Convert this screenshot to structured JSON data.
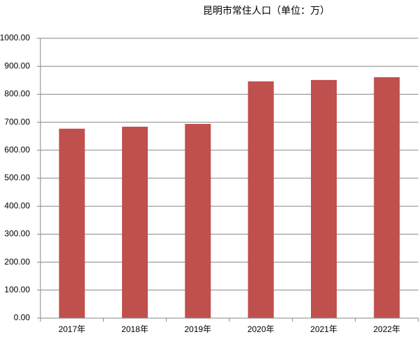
{
  "chart_data": {
    "type": "bar",
    "title": "昆明市常住人口（单位：万）",
    "categories": [
      "2017年",
      "2018年",
      "2019年",
      "2020年",
      "2021年",
      "2022年"
    ],
    "values": [
      677,
      684,
      694,
      846,
      851,
      861
    ],
    "color": "#c0504d",
    "ylim": [
      0,
      1000
    ],
    "yticks": [
      {
        "value": 0,
        "label": "0.00"
      },
      {
        "value": 100,
        "label": "100.00"
      },
      {
        "value": 200,
        "label": "200.00"
      },
      {
        "value": 300,
        "label": "300.00"
      },
      {
        "value": 400,
        "label": "400.00"
      },
      {
        "value": 500,
        "label": "500.00"
      },
      {
        "value": 600,
        "label": "600.00"
      },
      {
        "value": 700,
        "label": "700.00"
      },
      {
        "value": 800,
        "label": "800.00"
      },
      {
        "value": 900,
        "label": "900.00"
      },
      {
        "value": 1000,
        "label": "1000.00"
      }
    ],
    "grid": true
  }
}
